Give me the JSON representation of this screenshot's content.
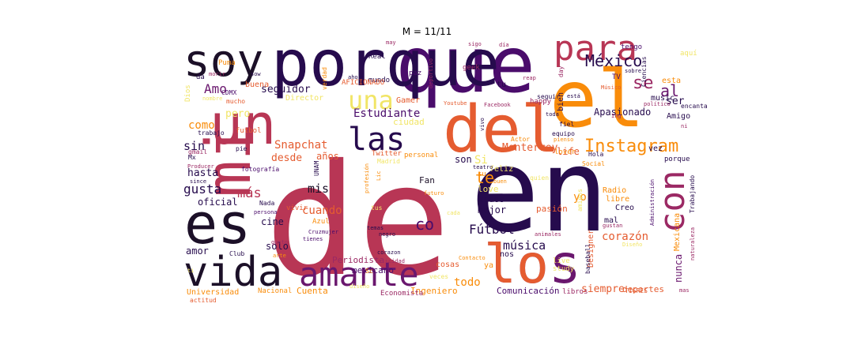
{
  "figure": {
    "title": "M = 11/11"
  },
  "palette": [
    "#b83655",
    "#260b4d",
    "#4a0c6b",
    "#6a176e",
    "#e55c30",
    "#f98c0a",
    "#f1e566",
    "#d8a45a",
    "#1c1028",
    "#9b2964"
  ],
  "words": [
    {
      "text": "de",
      "color": "#b83655"
    },
    {
      "text": "en",
      "color": "#260b4d"
    },
    {
      "text": "que",
      "color": "#4a0c6b"
    },
    {
      "text": "porque",
      "color": "#260b4d"
    },
    {
      "text": "el",
      "color": "#f98c0a"
    },
    {
      "text": "del",
      "color": "#e55c30"
    },
    {
      "text": "los",
      "color": "#6a176e"
    },
    {
      "text": "lo",
      "color": "#e55c30"
    },
    {
      "text": "mi",
      "color": "#b83655"
    },
    {
      "text": "es",
      "color": "#1c1028"
    },
    {
      "text": "un",
      "color": "#b83655"
    },
    {
      "text": "soy",
      "color": "#1c1028"
    },
    {
      "text": "vida",
      "color": "#1c1028"
    },
    {
      "text": "amante",
      "color": "#6a176e"
    },
    {
      "text": "las",
      "color": "#260b4d"
    },
    {
      "text": "para",
      "color": "#b83655"
    },
    {
      "text": "con",
      "color": "#9b2964"
    },
    {
      "text": "una",
      "color": "#f1e566"
    },
    {
      "text": "Instagram",
      "color": "#f98c0a"
    },
    {
      "text": "México",
      "color": "#260b4d"
    },
    {
      "text": "se",
      "color": "#9b2964"
    },
    {
      "text": "al",
      "color": "#6a176e"
    },
    {
      "text": "Amo",
      "color": "#6a176e"
    },
    {
      "text": "seguidor",
      "color": "#260b4d"
    },
    {
      "text": "Estudiante",
      "color": "#4a0c6b"
    },
    {
      "text": "Snapchat",
      "color": "#e55c30"
    },
    {
      "text": "desde",
      "color": "#e55c30"
    },
    {
      "text": "más",
      "color": "#b83655"
    },
    {
      "text": "gusta",
      "color": "#260b4d"
    },
    {
      "text": "sin",
      "color": "#260b4d"
    },
    {
      "text": "como",
      "color": "#f98c0a"
    },
    {
      "text": "hasta",
      "color": "#260b4d"
    },
    {
      "text": "mis",
      "color": "#1c1028"
    },
    {
      "text": "co",
      "color": "#4a0c6b"
    },
    {
      "text": "Fútbol",
      "color": "#260b4d"
    },
    {
      "text": "música",
      "color": "#260b4d"
    },
    {
      "text": "corazón",
      "color": "#e55c30"
    },
    {
      "text": "te",
      "color": "#f98c0a"
    },
    {
      "text": "cuando",
      "color": "#e55c30"
    },
    {
      "text": "Monterrey",
      "color": "#e55c30"
    },
    {
      "text": "siempre",
      "color": "#e55c30"
    },
    {
      "text": "todo",
      "color": "#f98c0a"
    },
    {
      "text": "ser",
      "color": "#260b4d"
    },
    {
      "text": "Apasionado",
      "color": "#260b4d"
    },
    {
      "text": "oficial",
      "color": "#260b4d"
    },
    {
      "text": "cine",
      "color": "#260b4d"
    },
    {
      "text": "amor",
      "color": "#260b4d"
    },
    {
      "text": "solo",
      "color": "#260b4d"
    },
    {
      "text": "Periodista",
      "color": "#9b2964"
    },
    {
      "text": "mexicano",
      "color": "#4a0c6b"
    },
    {
      "text": "Cuenta",
      "color": "#f98c0a"
    },
    {
      "text": "Ingeniero",
      "color": "#f98c0a"
    },
    {
      "text": "Comunicación",
      "color": "#4a0c6b"
    },
    {
      "text": "deportes",
      "color": "#e55c30"
    },
    {
      "text": "nunca",
      "color": "#6a176e"
    },
    {
      "text": "Universidad",
      "color": "#f98c0a"
    },
    {
      "text": "Nacional",
      "color": "#f98c0a"
    },
    {
      "text": "Economista",
      "color": "#9b2964"
    },
    {
      "text": "libros",
      "color": "#9b2964"
    },
    {
      "text": "mejor",
      "color": "#260b4d"
    },
    {
      "text": "todos",
      "color": "#260b4d"
    },
    {
      "text": "pasión",
      "color": "#e55c30"
    },
    {
      "text": "Fan",
      "color": "#1c1028"
    },
    {
      "text": "feliz",
      "color": "#f1e566"
    },
    {
      "text": "love",
      "color": "#f1e566"
    },
    {
      "text": "life",
      "color": "#e55c30"
    },
    {
      "text": "yo",
      "color": "#f98c0a"
    },
    {
      "text": "Radio",
      "color": "#f98c0a"
    },
    {
      "text": "libre",
      "color": "#f98c0a"
    },
    {
      "text": "Creo",
      "color": "#260b4d"
    },
    {
      "text": "mal",
      "color": "#260b4d"
    },
    {
      "text": "son",
      "color": "#260b4d"
    },
    {
      "text": "Si",
      "color": "#f1e566"
    },
    {
      "text": "ciudad",
      "color": "#f1e566"
    },
    {
      "text": "años",
      "color": "#e55c30"
    },
    {
      "text": "Gamer",
      "color": "#e55c30"
    },
    {
      "text": "Director",
      "color": "#f1e566"
    },
    {
      "text": "Real",
      "color": "#260b4d"
    },
    {
      "text": "mundo",
      "color": "#260b4d"
    },
    {
      "text": "AFICIONADO",
      "color": "#e55c30"
    },
    {
      "text": "paz",
      "color": "#4a0c6b"
    },
    {
      "text": "geek",
      "color": "#9b2964"
    },
    {
      "text": "tengo",
      "color": "#4a0c6b"
    },
    {
      "text": "music",
      "color": "#260b4d"
    },
    {
      "text": "Amigo",
      "color": "#260b4d"
    },
    {
      "text": "esta",
      "color": "#f98c0a"
    },
    {
      "text": "vez",
      "color": "#260b4d"
    },
    {
      "text": "porque",
      "color": "#260b4d"
    },
    {
      "text": "Puma",
      "color": "#f98c0a"
    },
    {
      "text": "da",
      "color": "#260b4d"
    },
    {
      "text": "buena",
      "color": "#e55c30"
    },
    {
      "text": "CDMX",
      "color": "#4a0c6b"
    },
    {
      "text": "mucho",
      "color": "#e55c30"
    },
    {
      "text": "trabajo",
      "color": "#260b4d"
    },
    {
      "text": "futbol",
      "color": "#e55c30"
    },
    {
      "text": "pie",
      "color": "#260b4d"
    },
    {
      "text": "gmail",
      "color": "#9b2964"
    },
    {
      "text": "Mx",
      "color": "#260b4d"
    },
    {
      "text": "Producer",
      "color": "#9b2964"
    },
    {
      "text": "since",
      "color": "#260b4d"
    },
    {
      "text": "fotografía",
      "color": "#4a0c6b"
    },
    {
      "text": "Twitter",
      "color": "#e55c30"
    },
    {
      "text": "personal",
      "color": "#f98c0a"
    },
    {
      "text": "lover",
      "color": "#f98c0a"
    },
    {
      "text": "Madrid",
      "color": "#f1e566"
    },
    {
      "text": "Club",
      "color": "#260b4d"
    },
    {
      "text": "arte",
      "color": "#f98c0a"
    },
    {
      "text": "Azul",
      "color": "#f98c0a"
    },
    {
      "text": "Cruzmujer",
      "color": "#4a0c6b"
    },
    {
      "text": "vivir",
      "color": "#e55c30"
    },
    {
      "text": "tienes",
      "color": "#4a0c6b"
    },
    {
      "text": "gusto",
      "color": "#9b2964"
    },
    {
      "text": "Nada",
      "color": "#260b4d"
    },
    {
      "text": "persona",
      "color": "#4a0c6b"
    },
    {
      "text": "negro",
      "color": "#260b4d"
    },
    {
      "text": "temas",
      "color": "#260b4d"
    },
    {
      "text": "corazon",
      "color": "#260b4d"
    },
    {
      "text": "felicidad",
      "color": "#9b2964"
    },
    {
      "text": "cosas",
      "color": "#e55c30"
    },
    {
      "text": "nos",
      "color": "#260b4d"
    },
    {
      "text": "Contacto",
      "color": "#f98c0a"
    },
    {
      "text": "live",
      "color": "#f1e566"
    },
    {
      "text": "study",
      "color": "#f1e566"
    },
    {
      "text": "Designer",
      "color": "#e55c30"
    },
    {
      "text": "baseball",
      "color": "#260b4d"
    },
    {
      "text": "TIGRES",
      "color": "#e55c30"
    },
    {
      "text": "mas",
      "color": "#9b2964"
    },
    {
      "text": "naturaleza",
      "color": "#9b2964"
    },
    {
      "text": "Mexicana",
      "color": "#f98c0a"
    },
    {
      "text": "Administración",
      "color": "#4a0c6b"
    },
    {
      "text": "Trabajando",
      "color": "#260b4d"
    },
    {
      "text": "gustan",
      "color": "#9b2964"
    },
    {
      "text": "animales",
      "color": "#9b2964"
    },
    {
      "text": "amigos",
      "color": "#f1e566"
    },
    {
      "text": "quien",
      "color": "#f1e566"
    },
    {
      "text": "buen",
      "color": "#f98c0a"
    },
    {
      "text": "futuro",
      "color": "#f98c0a"
    },
    {
      "text": "Lic",
      "color": "#f98c0a"
    },
    {
      "text": "profesión",
      "color": "#f98c0a"
    },
    {
      "text": "UNAM",
      "color": "#260b4d"
    },
    {
      "text": "Sc",
      "color": "#f98c0a"
    },
    {
      "text": "teatro",
      "color": "#260b4d"
    },
    {
      "text": "Hola",
      "color": "#260b4d"
    },
    {
      "text": "Social",
      "color": "#f98c0a"
    },
    {
      "text": "Dios",
      "color": "#f1e566"
    },
    {
      "text": "morir",
      "color": "#9b2964"
    },
    {
      "text": "sow",
      "color": "#260b4d"
    },
    {
      "text": "nombre",
      "color": "#f1e566"
    },
    {
      "text": "verdad",
      "color": "#f98c0a"
    },
    {
      "text": "ahora",
      "color": "#260b4d"
    },
    {
      "text": "deportivo",
      "color": "#9b2964"
    },
    {
      "text": "Youtube",
      "color": "#e55c30"
    },
    {
      "text": "vivo",
      "color": "#260b4d"
    },
    {
      "text": "reap",
      "color": "#9b2964"
    },
    {
      "text": "happy",
      "color": "#9b2964"
    },
    {
      "text": "Facebook",
      "color": "#9b2964"
    },
    {
      "text": "toda",
      "color": "#260b4d"
    },
    {
      "text": "Actor",
      "color": "#f98c0a"
    },
    {
      "text": "seguir",
      "color": "#260b4d"
    },
    {
      "text": "fiel",
      "color": "#260b4d"
    },
    {
      "text": "equipo",
      "color": "#260b4d"
    },
    {
      "text": "está",
      "color": "#260b4d"
    },
    {
      "text": "Músico",
      "color": "#e55c30"
    },
    {
      "text": "día",
      "color": "#9b2964"
    },
    {
      "text": "sigo",
      "color": "#9b2964"
    },
    {
      "text": "may",
      "color": "#9b2964"
    },
    {
      "text": "pienso",
      "color": "#f98c0a"
    },
    {
      "text": "sobre",
      "color": "#260b4d"
    },
    {
      "text": "TV",
      "color": "#4a0c6b"
    },
    {
      "text": "Ciencias",
      "color": "#260b4d"
    },
    {
      "text": "político",
      "color": "#9b2964"
    },
    {
      "text": "aquí",
      "color": "#f1e566"
    },
    {
      "text": "encanta",
      "color": "#260b4d"
    },
    {
      "text": "ni",
      "color": "#9b2964"
    },
    {
      "text": "Ing",
      "color": "#9b2964"
    },
    {
      "text": "cada",
      "color": "#f1e566"
    },
    {
      "text": "Diseño",
      "color": "#f1e566"
    },
    {
      "text": "ya",
      "color": "#f98c0a"
    },
    {
      "text": "veces",
      "color": "#f1e566"
    },
    {
      "text": "diseño",
      "color": "#f1e566"
    },
    {
      "text": "actitud",
      "color": "#e55c30"
    },
    {
      "text": "ti",
      "color": "#f1e566"
    },
    {
      "text": "su",
      "color": "#f98c0a"
    },
    {
      "text": "pero",
      "color": "#f1e566"
    },
    {
      "text": "tus",
      "color": "#f1e566"
    },
    {
      "text": "tu",
      "color": "#260b4d"
    },
    {
      "text": "bien",
      "color": "#260b4d"
    },
    {
      "text": "day",
      "color": "#9b2964"
    }
  ]
}
